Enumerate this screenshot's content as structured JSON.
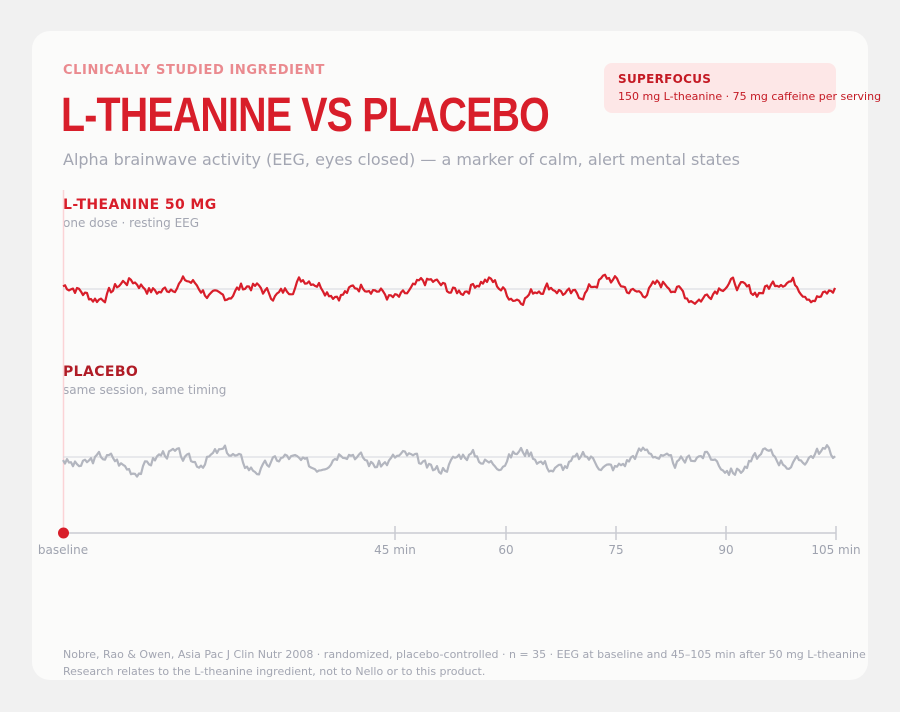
{
  "header": {
    "eyebrow": "CLINICALLY STUDIED INGREDIENT",
    "title": "L-THEANINE VS PLACEBO",
    "subtitle": "Alpha brainwave activity (EEG, eyes closed) — a marker of calm, alert mental states"
  },
  "brand": {
    "name": "SUPERFOCUS",
    "detail": "150 mg L-theanine · 75 mg caffeine per serving"
  },
  "panels": {
    "theanine": {
      "label": "L-THEANINE  50 MG",
      "sub": "one dose · resting EEG"
    },
    "placebo": {
      "label": "PLACEBO",
      "sub": "same session, same timing"
    }
  },
  "footer": {
    "line1": "Nobre, Rao & Owen, Asia Pac J Clin Nutr 2008  ·  randomized, placebo-controlled  ·  n = 35  ·  EEG at baseline and 45–105 min after 50 mg L-theanine",
    "line2": "Research relates to the L-theanine ingredient, not to Nello or to this product."
  },
  "colors": {
    "theanine": "#d81e2a",
    "placebo": "#b3b6bf",
    "axis": "#c9cbd2",
    "marker": "#d81e2a"
  },
  "chart_data": {
    "type": "line",
    "x_ticks": [
      {
        "label": "baseline"
      },
      {
        "label": "45 min"
      },
      {
        "label": "60"
      },
      {
        "label": "75"
      },
      {
        "label": "90"
      },
      {
        "label": "105 min"
      }
    ],
    "series": [
      {
        "name": "L-THEANINE  50 MG"
      },
      {
        "name": "PLACEBO"
      }
    ]
  }
}
